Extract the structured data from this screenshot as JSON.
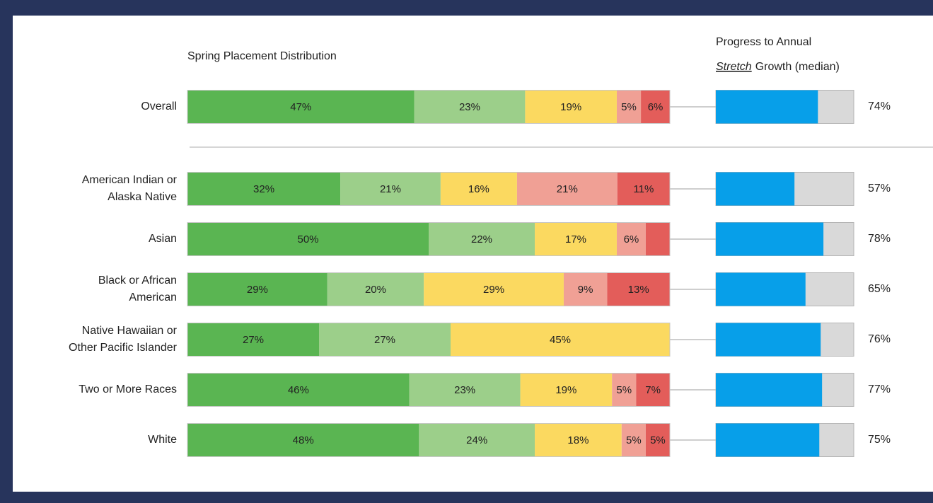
{
  "chart_data": {
    "type": "stacked-bar",
    "title": "Spring Placement Distribution",
    "categories": [
      [
        "Overall"
      ],
      [
        "American Indian or",
        "Alaska Native"
      ],
      [
        "Asian"
      ],
      [
        "Black or African",
        "American"
      ],
      [
        "Native Hawaiian or",
        "Other Pacific Islander"
      ],
      [
        "Two or More Races"
      ],
      [
        "White"
      ]
    ],
    "series": [
      {
        "color": "#5ab552",
        "values": [
          47,
          32,
          50,
          29,
          27,
          46,
          48
        ],
        "value_labels": [
          "47%",
          "32%",
          "50%",
          "29%",
          "27%",
          "46%",
          "48%"
        ]
      },
      {
        "color": "#9ccf8a",
        "values": [
          23,
          21,
          22,
          20,
          27,
          23,
          24
        ],
        "value_labels": [
          "23%",
          "21%",
          "22%",
          "20%",
          "27%",
          "23%",
          "24%"
        ]
      },
      {
        "color": "#fbd960",
        "values": [
          19,
          16,
          17,
          29,
          45,
          19,
          18
        ],
        "value_labels": [
          "19%",
          "16%",
          "17%",
          "29%",
          "45%",
          "19%",
          "18%"
        ]
      },
      {
        "color": "#f0a095",
        "values": [
          5,
          21,
          6,
          9,
          null,
          5,
          5
        ],
        "value_labels": [
          "5%",
          "21%",
          "6%",
          "9%",
          null,
          "5%",
          "5%"
        ]
      },
      {
        "color": "#e35d5a",
        "values": [
          6,
          11,
          5,
          13,
          null,
          7,
          5
        ],
        "value_labels": [
          "6%",
          "11%",
          null,
          "13%",
          null,
          "7%",
          "5%"
        ]
      }
    ],
    "progress": {
      "title_line1": "Progress to Annual",
      "title_emphasis": "Stretch",
      "title_rest": "Growth (median)",
      "color": "#079fe9",
      "track_color": "#d9d9d9",
      "xlim": [
        0,
        100
      ],
      "values": [
        74,
        57,
        78,
        65,
        76,
        77,
        75
      ],
      "value_labels": [
        "74%",
        "57%",
        "78%",
        "65%",
        "76%",
        "77%",
        "75%"
      ]
    }
  }
}
